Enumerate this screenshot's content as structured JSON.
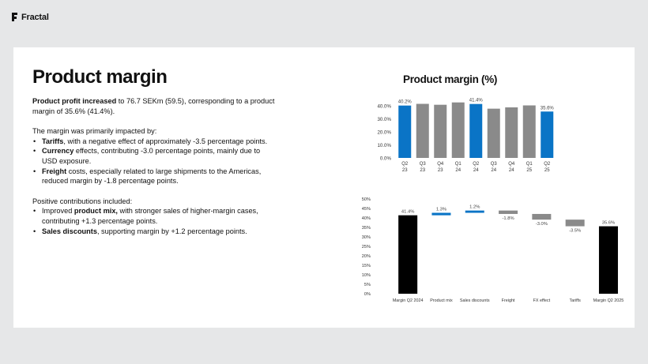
{
  "brand": {
    "name": "Fractal"
  },
  "slide": {
    "title": "Product margin",
    "paragraph1": {
      "bold": "Product profit increased",
      "rest": " to 76.7 SEKm (59.5), corresponding to a product margin of 35.6% (41.4%)."
    },
    "impact_intro": "The margin was primarily impacted by:",
    "impacts": [
      {
        "bold": "Tariffs",
        "rest": ", with a negative effect of approximately -3.5 percentage points."
      },
      {
        "bold": "Currency",
        "rest": " effects, contributing -3.0 percentage points, mainly due to USD exposure."
      },
      {
        "bold": "Freight",
        "rest": " costs, especially related to large shipments to the Americas, reduced margin by -1.8 percentage points."
      }
    ],
    "positive_intro": "Positive contributions included:",
    "positives": [
      {
        "pre": "Improved ",
        "bold": "product mix,",
        "rest": " with stronger sales of higher-margin cases, contributing +1.3 percentage points."
      },
      {
        "pre": "",
        "bold": "Sales discounts",
        "rest": ", supporting margin by +1.2 percentage points."
      }
    ],
    "chart_heading": "Product margin (%)"
  },
  "colors": {
    "blue": "#0a74c6",
    "gray": "#8a8a8a",
    "black": "#000000"
  },
  "chart_data": [
    {
      "type": "bar",
      "title": "Product margin (%)",
      "categories": [
        [
          "Q2",
          "23"
        ],
        [
          "Q3",
          "23"
        ],
        [
          "Q4",
          "23"
        ],
        [
          "Q1",
          "24"
        ],
        [
          "Q2",
          "24"
        ],
        [
          "Q3",
          "24"
        ],
        [
          "Q4",
          "24"
        ],
        [
          "Q1",
          "25"
        ],
        [
          "Q2",
          "25"
        ]
      ],
      "values": [
        40.2,
        41.5,
        40.8,
        42.6,
        41.4,
        37.8,
        38.8,
        40.3,
        35.6
      ],
      "highlight": [
        0,
        4,
        8
      ],
      "data_labels": [
        "40.2%",
        "",
        "",
        "",
        "41.4%",
        "",
        "",
        "",
        "35.6%"
      ],
      "ylim": [
        0,
        40
      ],
      "yticks": [
        "0.0%",
        "10.0%",
        "20.0%",
        "30.0%",
        "40.0%"
      ],
      "ytick_values": [
        0,
        10,
        20,
        30,
        40
      ]
    },
    {
      "type": "bar",
      "subtype": "waterfall",
      "categories": [
        "Margin Q2 2024",
        "Product mix",
        "Sales discounts",
        "Freight",
        "FX effect",
        "Tariffs",
        "Margin Q2 2025"
      ],
      "values": [
        41.4,
        1.3,
        1.2,
        -1.8,
        -3.0,
        -3.5,
        35.6
      ],
      "data_labels": [
        "41.4%",
        "1.3%",
        "1.2%",
        "-1.8%",
        "-3.0%",
        "-3.5%",
        "35.6%"
      ],
      "ylim": [
        0,
        50
      ],
      "yticks": [
        "0%",
        "5%",
        "10%",
        "15%",
        "20%",
        "25%",
        "30%",
        "35%",
        "40%",
        "45%",
        "50%"
      ],
      "ytick_values": [
        0,
        5,
        10,
        15,
        20,
        25,
        30,
        35,
        40,
        45,
        50
      ]
    }
  ]
}
